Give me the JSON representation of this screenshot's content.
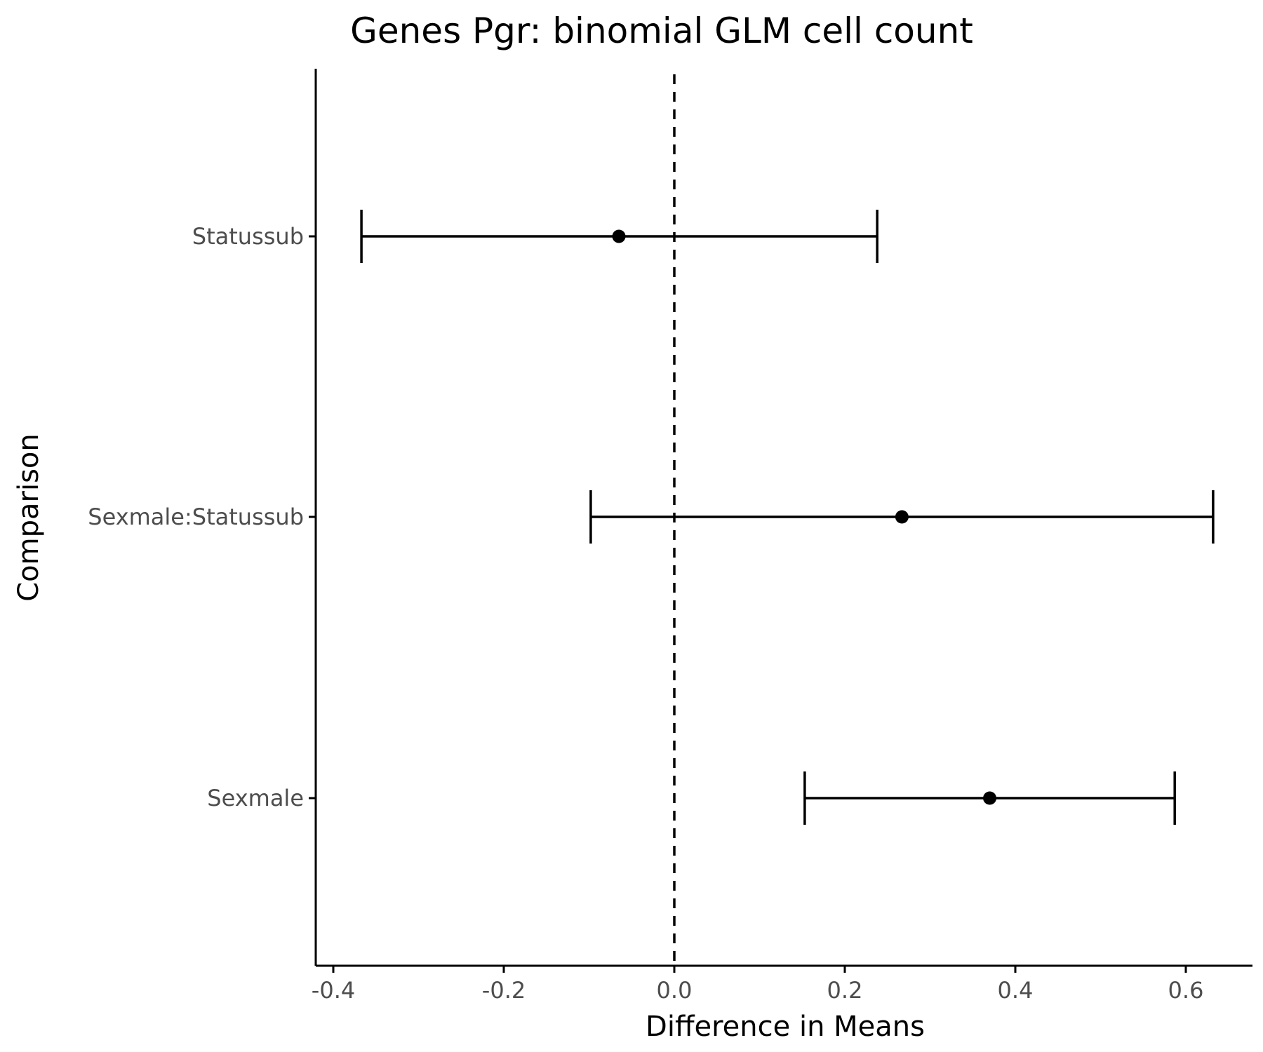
{
  "chart_data": {
    "type": "scatter",
    "subtype": "point-with-error-bars",
    "title": "Genes Pgr: binomial GLM cell count",
    "xlabel": "Difference in Means",
    "ylabel": "Comparison",
    "xlim": [
      -0.42,
      0.68
    ],
    "x_ticks": [
      -0.4,
      -0.2,
      0.0,
      0.2,
      0.4,
      0.6
    ],
    "x_tick_labels": [
      "-0.4",
      "-0.2",
      "0.0",
      "0.2",
      "0.4",
      "0.6"
    ],
    "categories": [
      "Statussub",
      "Sexmale:Statussub",
      "Sexmale"
    ],
    "estimates": [
      -0.065,
      0.267,
      0.37
    ],
    "lower": [
      -0.367,
      -0.098,
      0.153
    ],
    "upper": [
      0.238,
      0.632,
      0.587
    ],
    "reference_line": 0.0,
    "grid": false,
    "legend": "none",
    "colors": {
      "marks": "#000000",
      "tick_label": "#4d4d4d"
    }
  }
}
